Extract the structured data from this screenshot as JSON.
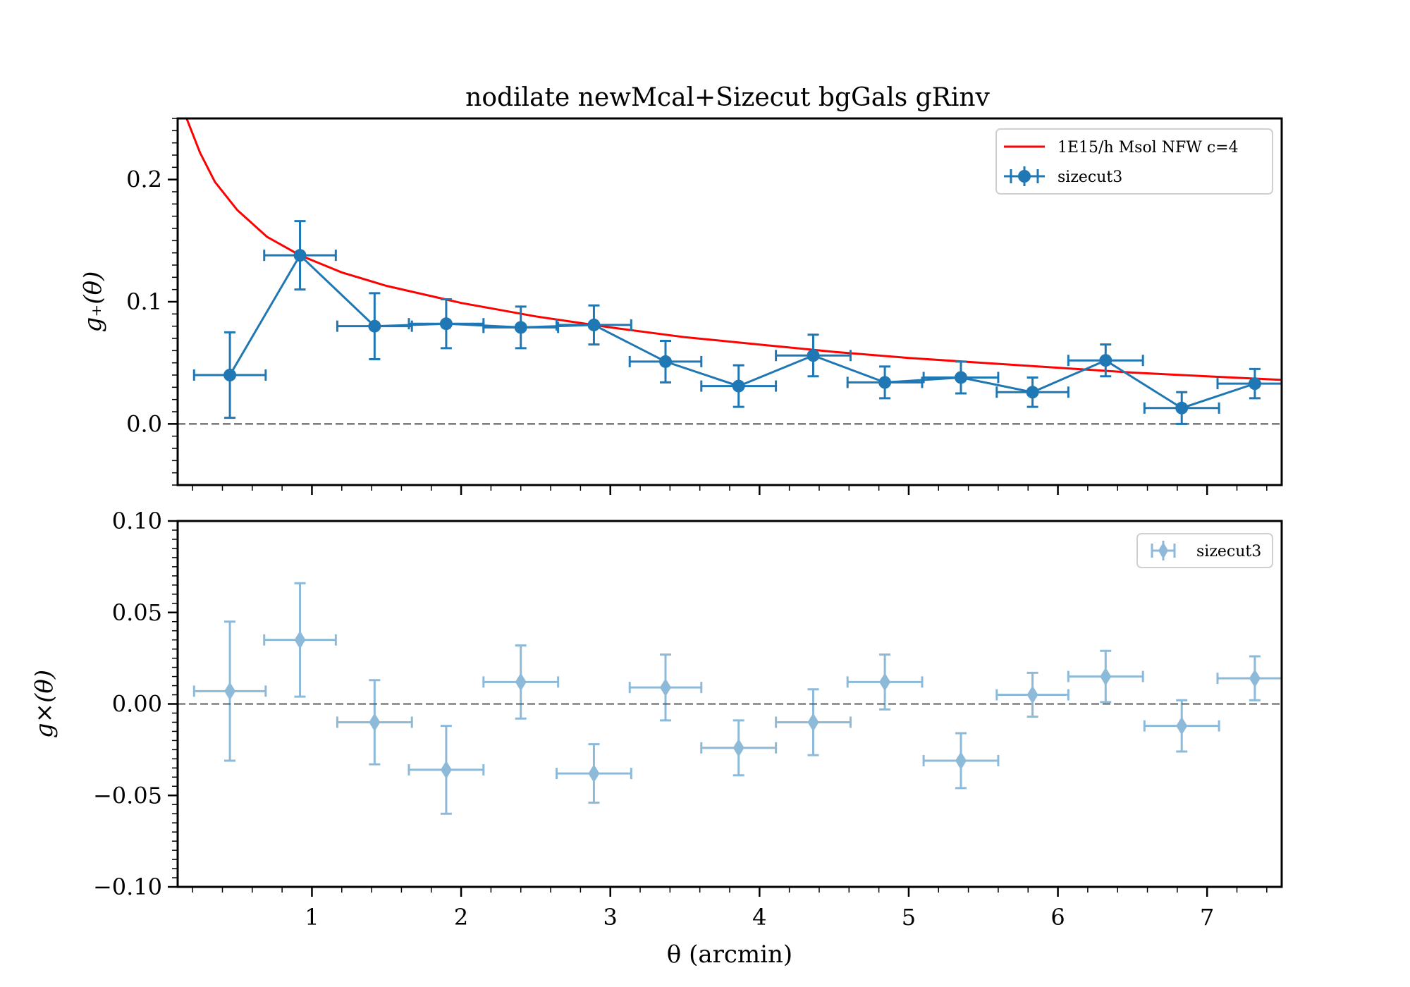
{
  "title": "nodilate newMcal+Sizecut bgGals gRinv",
  "colors": {
    "series_gplus": "#1f77b4",
    "series_gx": "#1f77b4",
    "model": "#ff0000",
    "zero_line": "#7f7f7f"
  },
  "chart_data": [
    {
      "type": "line",
      "panel": "top",
      "ylabel": "g₊(θ)",
      "xlim": [
        0.1,
        7.5
      ],
      "ylim": [
        -0.05,
        0.25
      ],
      "yticks": [
        "0.0",
        "0.1",
        "0.2"
      ],
      "ytick_values": [
        0.0,
        0.1,
        0.2
      ],
      "grid": false,
      "legend_placement": "upper right",
      "reference_line": 0,
      "series": [
        {
          "name": "1E15/h Msol NFW c=4",
          "kind": "model",
          "x": [
            0.16,
            0.25,
            0.35,
            0.5,
            0.7,
            0.92,
            1.2,
            1.5,
            2.0,
            2.5,
            3.0,
            3.5,
            4.0,
            4.5,
            5.0,
            5.5,
            6.0,
            6.5,
            7.0,
            7.5
          ],
          "y": [
            0.25,
            0.222,
            0.198,
            0.175,
            0.153,
            0.138,
            0.124,
            0.113,
            0.099,
            0.088,
            0.079,
            0.071,
            0.065,
            0.059,
            0.054,
            0.05,
            0.046,
            0.042,
            0.039,
            0.036
          ]
        },
        {
          "name": "sizecut3",
          "kind": "data",
          "x": [
            0.45,
            0.92,
            1.42,
            1.9,
            2.4,
            2.89,
            3.37,
            3.86,
            4.36,
            4.84,
            5.35,
            5.83,
            6.32,
            6.83,
            7.32
          ],
          "y": [
            0.04,
            0.138,
            0.08,
            0.082,
            0.079,
            0.081,
            0.051,
            0.031,
            0.056,
            0.034,
            0.038,
            0.026,
            0.052,
            0.013,
            0.033
          ],
          "xerr": [
            0.24,
            0.24,
            0.25,
            0.25,
            0.25,
            0.25,
            0.24,
            0.25,
            0.25,
            0.25,
            0.25,
            0.24,
            0.25,
            0.25,
            0.25
          ],
          "yerr": [
            0.035,
            0.028,
            0.027,
            0.02,
            0.017,
            0.016,
            0.017,
            0.017,
            0.017,
            0.013,
            0.013,
            0.012,
            0.013,
            0.013,
            0.012
          ]
        }
      ]
    },
    {
      "type": "scatter",
      "panel": "bottom",
      "xlabel": "θ (arcmin)",
      "ylabel": "g×(θ)",
      "xlim": [
        0.1,
        7.5
      ],
      "ylim": [
        -0.1,
        0.1
      ],
      "xticks": [
        "1",
        "2",
        "3",
        "4",
        "5",
        "6",
        "7"
      ],
      "xtick_values": [
        1,
        2,
        3,
        4,
        5,
        6,
        7
      ],
      "yticks": [
        "−0.10",
        "−0.05",
        "0.00",
        "0.05",
        "0.10"
      ],
      "ytick_values": [
        -0.1,
        -0.05,
        0.0,
        0.05,
        0.1
      ],
      "grid": false,
      "legend_placement": "upper right",
      "reference_line": 0,
      "series": [
        {
          "name": "sizecut3",
          "kind": "data",
          "x": [
            0.45,
            0.92,
            1.42,
            1.9,
            2.4,
            2.89,
            3.37,
            3.86,
            4.36,
            4.84,
            5.35,
            5.83,
            6.32,
            6.83,
            7.32
          ],
          "y": [
            0.007,
            0.035,
            -0.01,
            -0.036,
            0.012,
            -0.038,
            0.009,
            -0.024,
            -0.01,
            0.012,
            -0.031,
            0.005,
            0.015,
            -0.012,
            0.014
          ],
          "xerr": [
            0.24,
            0.24,
            0.25,
            0.25,
            0.25,
            0.25,
            0.24,
            0.25,
            0.25,
            0.25,
            0.25,
            0.24,
            0.25,
            0.25,
            0.25
          ],
          "yerr": [
            0.038,
            0.031,
            0.023,
            0.024,
            0.02,
            0.016,
            0.018,
            0.015,
            0.018,
            0.015,
            0.015,
            0.012,
            0.014,
            0.014,
            0.012
          ]
        }
      ]
    }
  ]
}
